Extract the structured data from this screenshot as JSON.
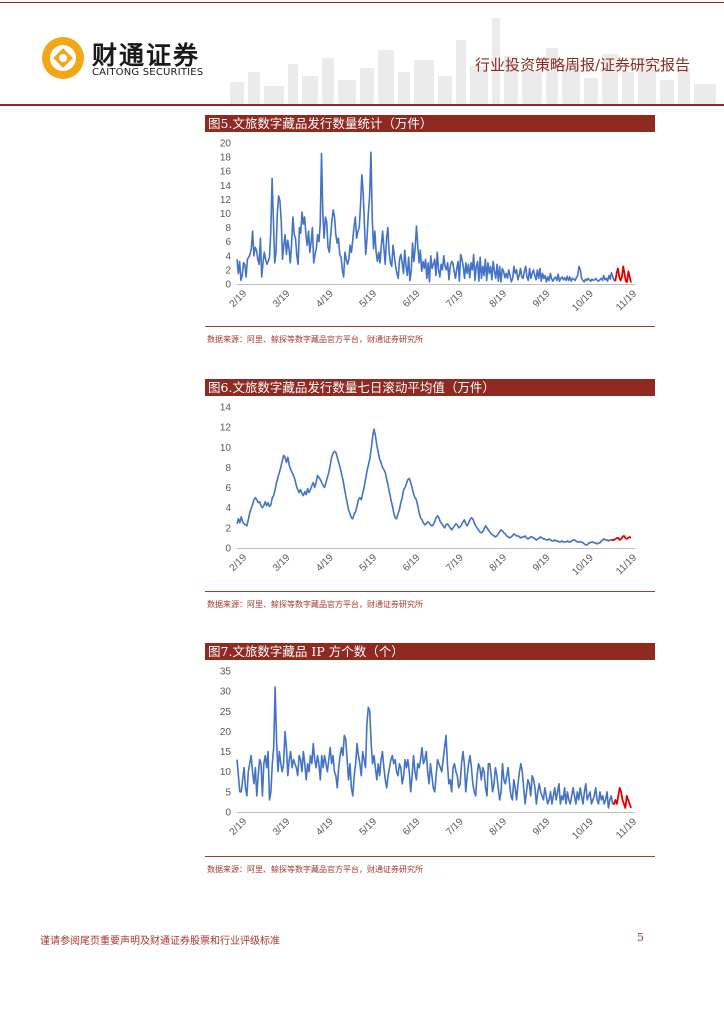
{
  "header": {
    "brand_cn": "财通证券",
    "brand_en": "CAITONG SECURITIES",
    "report_title": "行业投资策略周报/证券研究报告"
  },
  "figures": [
    {
      "title": "图5.文旅数字藏品发行数量统计（万件）",
      "source": "数据来源：阿里、鲸探等数字藏品官方平台，财通证券研究所"
    },
    {
      "title": "图6.文旅数字藏品发行数量七日滚动平均值（万件）",
      "source": "数据来源：阿里、鲸探等数字藏品官方平台，财通证券研究所"
    },
    {
      "title": "图7.文旅数字藏品 IP 方个数（个）",
      "source": "数据来源：阿里、鲸探等数字藏品官方平台，财通证券研究所"
    }
  ],
  "footer": {
    "disclaimer": "谨请参阅尾页重要声明及财通证券股票和行业评级标准",
    "page": "5"
  },
  "chart_data": [
    {
      "type": "line",
      "ylim": [
        0,
        20
      ],
      "yticks": [
        0,
        2,
        4,
        6,
        8,
        10,
        12,
        14,
        16,
        18,
        20
      ],
      "xticks": [
        "2/19",
        "3/19",
        "4/19",
        "5/19",
        "6/19",
        "7/19",
        "8/19",
        "9/19",
        "10/19",
        "11/19"
      ],
      "grid": false,
      "colors": {
        "main": "#4472c4",
        "recent": "#e00000"
      },
      "x_start": "2/19",
      "values": [
        3.5,
        1.5,
        3.2,
        0.5,
        1.2,
        3.0,
        2.8,
        1.0,
        3.5,
        3.8,
        4.2,
        5.0,
        7.5,
        4.0,
        5.2,
        4.8,
        3.5,
        2.8,
        6.5,
        1.0,
        3.0,
        4.5,
        3.5,
        2.8,
        3.2,
        3.8,
        7.5,
        15.0,
        9.0,
        3.0,
        4.5,
        10.0,
        12.5,
        11.8,
        9.0,
        3.5,
        5.5,
        7.0,
        4.2,
        6.2,
        5.0,
        3.0,
        5.8,
        9.5,
        7.0,
        6.5,
        4.0,
        2.8,
        8.0,
        7.2,
        10.2,
        8.5,
        9.5,
        7.0,
        5.5,
        7.5,
        4.5,
        6.0,
        8.0,
        3.0,
        4.2,
        5.0,
        7.0,
        6.0,
        8.5,
        18.5,
        10.0,
        6.5,
        9.5,
        8.8,
        5.2,
        4.5,
        6.8,
        9.0,
        10.5,
        9.5,
        7.0,
        5.8,
        6.5,
        4.2,
        3.8,
        2.0,
        1.0,
        4.5,
        3.5,
        2.8,
        3.5,
        5.5,
        4.5,
        6.2,
        8.2,
        9.5,
        6.5,
        7.5,
        8.0,
        11.2,
        15.5,
        13.0,
        8.5,
        4.2,
        6.5,
        10.0,
        12.5,
        18.7,
        9.5,
        5.0,
        7.5,
        4.5,
        3.2,
        4.5,
        3.0,
        5.5,
        7.5,
        5.0,
        2.8,
        6.5,
        8.0,
        4.5,
        3.0,
        2.5,
        5.5,
        4.0,
        2.5,
        1.5,
        0.8,
        3.5,
        4.2,
        3.0,
        1.5,
        4.8,
        2.5,
        1.2,
        3.8,
        0.5,
        1.8,
        5.8,
        3.2,
        5.0,
        8.2,
        5.5,
        3.0,
        4.8,
        1.8,
        3.2,
        2.2,
        3.5,
        0.8,
        3.0,
        0.3,
        4.0,
        2.2,
        2.8,
        3.5,
        1.2,
        4.5,
        2.0,
        1.0,
        2.8,
        2.0,
        4.0,
        2.5,
        2.0,
        3.0,
        0.6,
        2.5,
        3.2,
        3.0,
        1.8,
        0.8,
        2.2,
        3.2,
        0.4,
        4.2,
        3.5,
        2.5,
        0.8,
        3.0,
        1.5,
        2.8,
        0.9,
        3.0,
        2.0,
        4.2,
        0.5,
        2.5,
        3.2,
        0.4,
        3.8,
        0.8,
        2.5,
        1.2,
        3.5,
        0.5,
        3.0,
        1.5,
        2.5,
        0.6,
        3.2,
        1.8,
        0.8,
        2.8,
        0.4,
        2.5,
        0.3,
        2.2,
        1.8,
        0.9,
        1.5,
        0.8,
        2.0,
        1.2,
        0.3,
        0.8,
        2.5,
        1.5,
        2.0,
        0.6,
        1.2,
        2.2,
        1.0,
        0.8,
        1.8,
        2.5,
        1.0,
        0.5,
        2.2,
        0.8,
        1.5,
        2.0,
        1.2,
        0.6,
        2.0,
        0.8,
        2.2,
        0.4,
        1.5,
        0.8,
        1.2,
        0.3,
        1.0,
        0.5,
        1.5,
        0.7,
        0.4,
        0.8,
        1.0,
        0.5,
        1.4,
        0.4,
        0.8,
        1.0,
        0.6,
        0.9,
        0.5,
        1.1,
        0.5,
        1.0,
        0.4,
        0.8,
        0.7,
        0.5,
        0.9,
        1.2,
        2.5,
        2.0,
        0.8,
        0.5,
        0.3,
        0.7,
        0.5,
        0.8,
        0.6,
        0.4,
        0.7,
        0.5,
        0.6,
        0.8,
        0.5,
        0.4,
        0.6,
        0.8,
        0.5,
        1.2,
        0.6,
        0.8,
        0.4,
        1.2,
        0.7,
        1.6,
        1.0,
        0.5
      ],
      "recent_values": [
        0.5,
        1.6,
        2.2,
        1.0,
        0.5,
        1.0,
        2.5,
        1.5,
        0.4,
        0.3,
        1.8,
        1.0,
        0.2
      ]
    },
    {
      "type": "line",
      "ylim": [
        0,
        14
      ],
      "yticks": [
        0,
        2,
        4,
        6,
        8,
        10,
        12,
        14
      ],
      "xticks": [
        "2/19",
        "3/19",
        "4/19",
        "5/19",
        "6/19",
        "7/19",
        "8/19",
        "9/19",
        "10/19",
        "11/19"
      ],
      "grid": false,
      "colors": {
        "main": "#4472c4",
        "recent": "#e00000"
      },
      "x_start": "2/19",
      "values": [
        2.4,
        2.9,
        2.5,
        3.1,
        2.6,
        2.4,
        2.3,
        2.2,
        2.8,
        3.5,
        3.9,
        4.3,
        4.8,
        5.0,
        4.8,
        4.5,
        4.6,
        4.2,
        4.0,
        4.2,
        4.6,
        4.2,
        4.5,
        4.1,
        4.3,
        5.0,
        5.2,
        5.8,
        6.5,
        7.0,
        7.5,
        8.0,
        8.6,
        9.2,
        9.0,
        8.5,
        9.0,
        8.2,
        7.8,
        7.5,
        7.2,
        6.8,
        6.2,
        5.8,
        5.5,
        5.8,
        5.4,
        5.2,
        5.6,
        5.3,
        5.9,
        5.5,
        5.8,
        6.2,
        6.5,
        6.0,
        6.5,
        7.2,
        7.0,
        6.8,
        6.5,
        6.2,
        6.0,
        6.5,
        7.0,
        7.5,
        8.2,
        9.0,
        9.4,
        9.6,
        9.5,
        9.0,
        8.5,
        8.0,
        7.4,
        6.8,
        6.0,
        5.2,
        4.5,
        3.8,
        3.4,
        3.0,
        2.9,
        3.4,
        3.6,
        4.2,
        4.8,
        5.0,
        4.8,
        5.4,
        6.0,
        6.8,
        7.6,
        8.2,
        8.8,
        9.8,
        11.0,
        11.8,
        11.2,
        10.2,
        9.5,
        8.8,
        8.5,
        8.0,
        7.8,
        7.5,
        6.8,
        6.2,
        5.5,
        4.8,
        4.2,
        3.5,
        3.0,
        2.9,
        3.4,
        3.8,
        4.5,
        5.0,
        5.8,
        6.0,
        6.4,
        6.8,
        6.9,
        6.5,
        6.0,
        5.4,
        5.0,
        4.8,
        4.2,
        3.5,
        3.0,
        2.8,
        2.5,
        2.3,
        2.4,
        2.6,
        2.5,
        2.3,
        2.2,
        2.3,
        2.6,
        3.0,
        3.2,
        3.0,
        2.6,
        2.4,
        2.2,
        2.0,
        2.3,
        2.4,
        2.2,
        2.0,
        1.8,
        2.0,
        2.2,
        2.4,
        2.3,
        2.0,
        2.1,
        2.3,
        2.6,
        2.8,
        2.4,
        2.2,
        2.5,
        2.8,
        3.0,
        2.9,
        2.5,
        2.2,
        2.0,
        1.8,
        1.6,
        1.5,
        1.6,
        1.9,
        2.2,
        2.0,
        1.8,
        1.6,
        1.4,
        1.3,
        1.2,
        1.1,
        1.2,
        1.4,
        1.6,
        1.8,
        1.7,
        1.5,
        1.4,
        1.2,
        1.1,
        1.0,
        1.1,
        1.2,
        1.4,
        1.3,
        1.2,
        1.2,
        1.1,
        1.0,
        1.1,
        1.1,
        1.2,
        1.0,
        0.9,
        1.0,
        1.1,
        1.1,
        1.0,
        0.9,
        0.8,
        0.9,
        1.0,
        1.1,
        1.0,
        0.9,
        0.9,
        0.8,
        0.8,
        0.9,
        0.8,
        0.7,
        0.7,
        0.8,
        0.7,
        0.7,
        0.6,
        0.6,
        0.7,
        0.6,
        0.6,
        0.6,
        0.7,
        0.6,
        0.6,
        0.7,
        0.8,
        0.8,
        0.7,
        0.6,
        0.6,
        0.6,
        0.6,
        0.5,
        0.4,
        0.3,
        0.3,
        0.5,
        0.5,
        0.6,
        0.6,
        0.5,
        0.5,
        0.4,
        0.5,
        0.5,
        0.7,
        0.8,
        0.9,
        0.8,
        0.8,
        0.7,
        0.8,
        0.8
      ],
      "recent_values": [
        0.8,
        0.8,
        0.9,
        1.0,
        1.0,
        0.8,
        0.9,
        1.1,
        1.2,
        1.0,
        0.9,
        1.0,
        1.1,
        1.0
      ]
    },
    {
      "type": "line",
      "ylim": [
        0,
        35
      ],
      "yticks": [
        0,
        5,
        10,
        15,
        20,
        25,
        30,
        35
      ],
      "xticks": [
        "2/19",
        "3/19",
        "4/19",
        "5/19",
        "6/19",
        "7/19",
        "8/19",
        "9/19",
        "10/19",
        "11/19"
      ],
      "grid": false,
      "colors": {
        "main": "#4472c4",
        "recent": "#e00000"
      },
      "x_start": "2/19",
      "values": [
        13,
        9,
        5,
        5,
        8,
        11,
        6,
        4,
        10,
        12,
        14,
        10,
        7,
        11,
        4,
        9,
        13,
        12,
        4,
        12,
        14,
        11,
        15,
        3,
        5,
        12,
        16,
        31,
        18,
        10,
        15,
        12,
        10,
        12,
        20,
        16,
        9,
        13,
        15,
        11,
        13,
        12,
        11,
        9,
        14,
        13,
        10,
        15,
        12,
        8,
        12,
        10,
        14,
        12,
        17,
        13,
        11,
        14,
        12,
        8,
        14,
        11,
        14,
        12,
        10,
        13,
        16,
        12,
        14,
        10,
        9,
        6,
        11,
        14,
        16,
        14,
        19,
        18,
        13,
        8,
        12,
        6,
        4,
        9,
        12,
        17,
        14,
        12,
        9,
        15,
        13,
        11,
        22,
        26,
        25,
        17,
        12,
        14,
        11,
        8,
        12,
        9,
        13,
        15,
        11,
        8,
        6,
        9,
        11,
        13,
        14,
        12,
        13,
        10,
        9,
        12,
        11,
        7,
        9,
        13,
        11,
        13,
        10,
        5,
        9,
        14,
        10,
        8,
        12,
        11,
        13,
        16,
        12,
        13,
        15,
        10,
        7,
        12,
        9,
        6,
        5,
        9,
        13,
        12,
        11,
        10,
        13,
        16,
        19,
        12,
        7,
        8,
        5,
        11,
        12,
        10,
        9,
        6,
        7,
        12,
        15,
        12,
        5,
        9,
        12,
        14,
        11,
        7,
        5,
        4,
        9,
        12,
        11,
        8,
        11,
        10,
        6,
        4,
        12,
        12,
        9,
        5,
        7,
        11,
        9,
        6,
        3,
        5,
        12,
        8,
        7,
        9,
        11,
        7,
        4,
        3,
        8,
        6,
        3,
        7,
        10,
        12,
        10,
        6,
        2,
        5,
        8,
        7,
        4,
        9,
        8,
        6,
        2,
        5,
        7,
        5,
        4,
        3,
        6,
        4,
        2,
        3,
        5,
        2,
        4,
        6,
        3,
        5,
        7,
        2,
        4,
        3,
        6,
        2,
        5,
        3,
        2,
        4,
        6,
        4,
        2,
        5,
        3,
        6,
        4,
        2,
        5,
        7,
        3,
        4,
        5,
        2,
        3,
        4,
        6,
        3,
        2,
        5,
        3,
        4,
        2,
        3,
        5,
        1,
        3,
        4,
        2
      ],
      "recent_values": [
        2,
        3,
        2,
        4,
        6,
        5,
        3,
        2,
        1,
        4,
        3,
        2,
        1
      ]
    }
  ]
}
